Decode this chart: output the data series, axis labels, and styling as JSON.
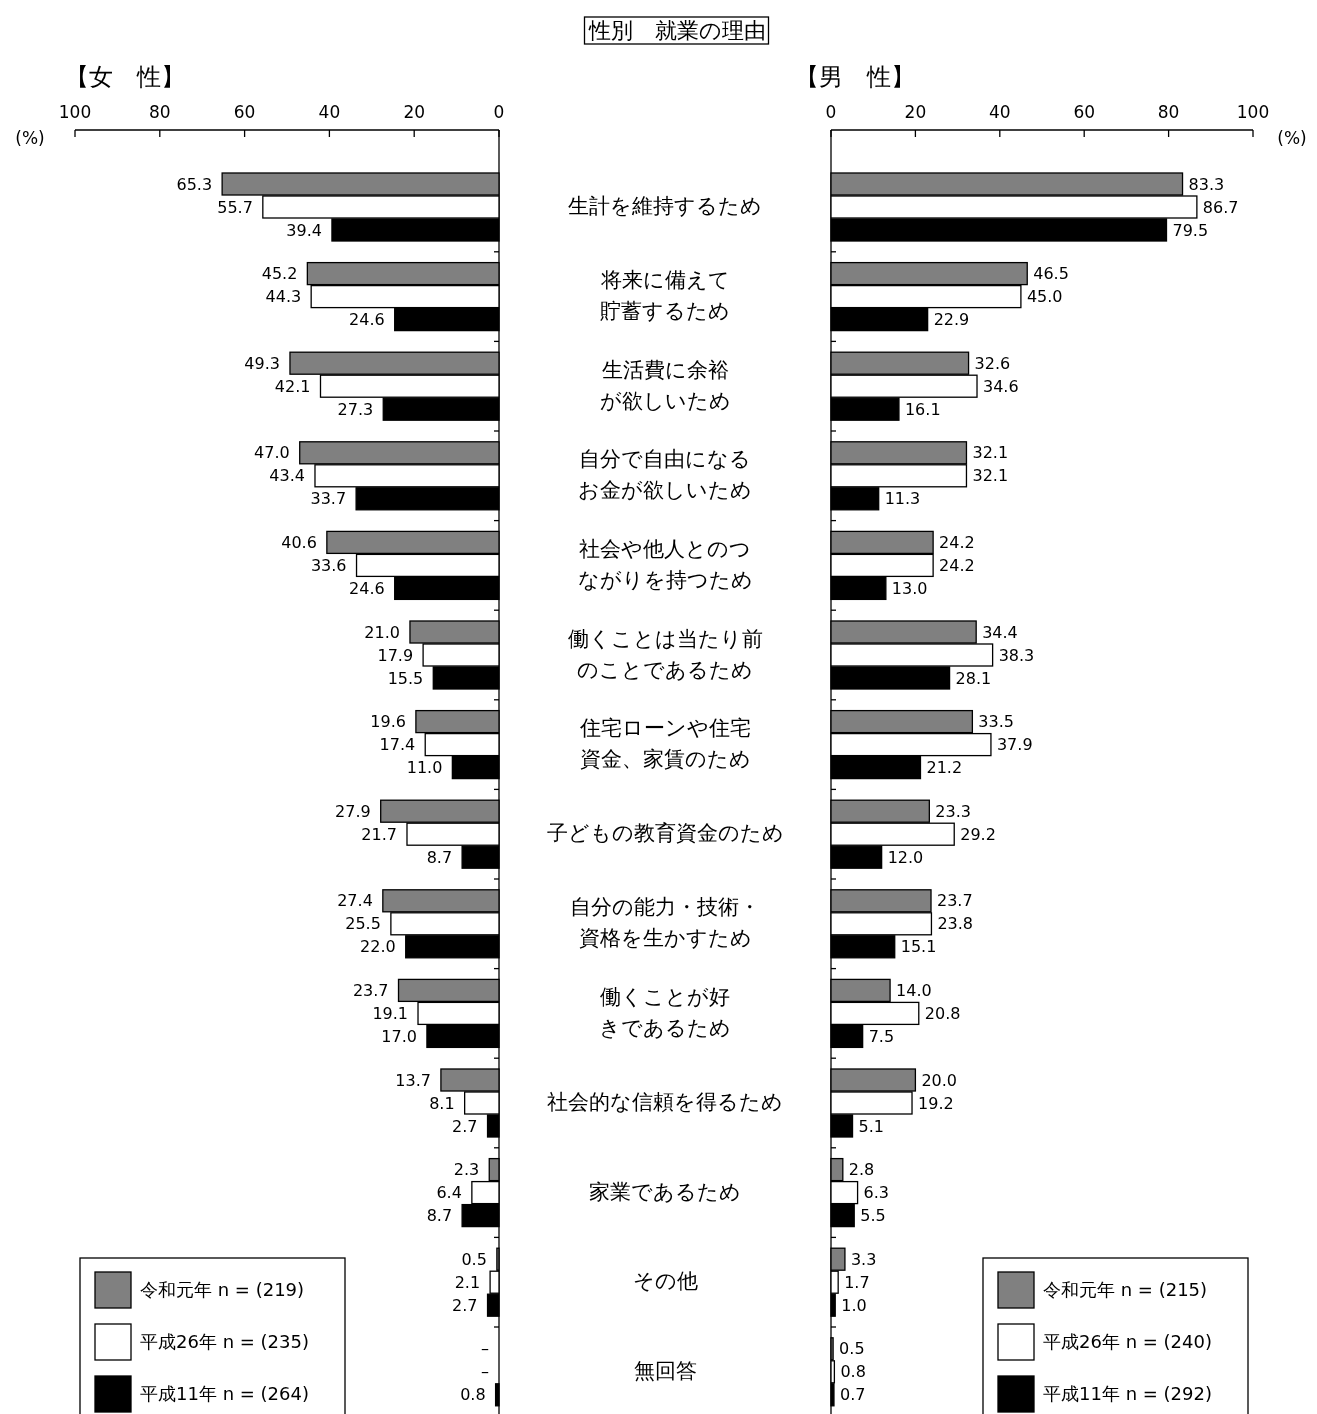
{
  "chart_data": [
    {
      "type": "bar",
      "orientation": "horizontal",
      "title": "性別　就業の理由",
      "subtitle": "【女　性】",
      "xlabel": "(%)",
      "xlim": [
        100,
        0
      ],
      "xticks": [
        0,
        20,
        40,
        60,
        80,
        100
      ],
      "legend": "bottom left",
      "categories": [
        "生計を維持するため",
        "将来に備えて貯蓄するため",
        "生活費に余裕が欲しいため",
        "自分で自由になるお金が欲しいため",
        "社会や他人とのつながりを持つため",
        "働くことは当たり前のことであるため",
        "住宅ローンや住宅資金、家賃のため",
        "子どもの教育資金のため",
        "自分の能力・技術・資格を生かすため",
        "働くことが好きであるため",
        "社会的な信頼を得るため",
        "家業であるため",
        "その他",
        "無回答"
      ],
      "series": [
        {
          "name": "令和元年 n = (219)",
          "color": "#808080",
          "values": [
            65.3,
            45.2,
            49.3,
            47.0,
            40.6,
            21.0,
            19.6,
            27.9,
            27.4,
            23.7,
            13.7,
            2.3,
            0.5,
            null
          ],
          "value_labels": [
            "65.3",
            "45.2",
            "49.3",
            "47.0",
            "40.6",
            "21.0",
            "19.6",
            "27.9",
            "27.4",
            "23.7",
            "13.7",
            "2.3",
            "0.5",
            "–"
          ]
        },
        {
          "name": "平成26年 n = (235)",
          "color": "#ffffff",
          "values": [
            55.7,
            44.3,
            42.1,
            43.4,
            33.6,
            17.9,
            17.4,
            21.7,
            25.5,
            19.1,
            8.1,
            6.4,
            2.1,
            null
          ],
          "value_labels": [
            "55.7",
            "44.3",
            "42.1",
            "43.4",
            "33.6",
            "17.9",
            "17.4",
            "21.7",
            "25.5",
            "19.1",
            "8.1",
            "6.4",
            "2.1",
            "–"
          ]
        },
        {
          "name": "平成11年 n = (264)",
          "color": "#000000",
          "values": [
            39.4,
            24.6,
            27.3,
            33.7,
            24.6,
            15.5,
            11.0,
            8.7,
            22.0,
            17.0,
            2.7,
            8.7,
            2.7,
            0.8
          ],
          "value_labels": [
            "39.4",
            "24.6",
            "27.3",
            "33.7",
            "24.6",
            "15.5",
            "11.0",
            "8.7",
            "22.0",
            "17.0",
            "2.7",
            "8.7",
            "2.7",
            "0.8"
          ]
        }
      ]
    },
    {
      "type": "bar",
      "orientation": "horizontal",
      "subtitle": "【男　性】",
      "xlabel": "(%)",
      "xlim": [
        0,
        100
      ],
      "xticks": [
        0,
        20,
        40,
        60,
        80,
        100
      ],
      "legend": "bottom right",
      "tick_labels": "x",
      "categories": [
        "生計を維持するため",
        "将来に備えて貯蓄するため",
        "生活費に余裕が欲しいため",
        "自分で自由になるお金が欲しいため",
        "社会や他人とのつながりを持つため",
        "働くことは当たり前のことであるため",
        "住宅ローンや住宅資金、家賃のため",
        "子どもの教育資金のため",
        "自分の能力・技術・資格を生かすため",
        "働くことが好きであるため",
        "社会的な信頼を得るため",
        "家業であるため",
        "その他",
        "無回答"
      ],
      "series": [
        {
          "name": "令和元年 n = (215)",
          "color": "#808080",
          "values": [
            83.3,
            46.5,
            32.6,
            32.1,
            24.2,
            34.4,
            33.5,
            23.3,
            23.7,
            14.0,
            20.0,
            2.8,
            3.3,
            0.5
          ],
          "value_labels": [
            "83.3",
            "46.5",
            "32.6",
            "32.1",
            "24.2",
            "34.4",
            "33.5",
            "23.3",
            "23.7",
            "14.0",
            "20.0",
            "2.8",
            "3.3",
            "0.5"
          ]
        },
        {
          "name": "平成26年 n = (240)",
          "color": "#ffffff",
          "values": [
            86.7,
            45.0,
            34.6,
            32.1,
            24.2,
            38.3,
            37.9,
            29.2,
            23.8,
            20.8,
            19.2,
            6.3,
            1.7,
            0.8
          ],
          "value_labels": [
            "86.7",
            "45.0",
            "34.6",
            "32.1",
            "24.2",
            "38.3",
            "37.9",
            "29.2",
            "23.8",
            "20.8",
            "19.2",
            "6.3",
            "1.7",
            "0.8"
          ]
        },
        {
          "name": "平成11年 n = (292)",
          "color": "#000000",
          "values": [
            79.5,
            22.9,
            16.1,
            11.3,
            13.0,
            28.1,
            21.2,
            12.0,
            15.1,
            7.5,
            5.1,
            5.5,
            1.0,
            0.7
          ],
          "value_labels": [
            "79.5",
            "22.9",
            "16.1",
            "11.3",
            "13.0",
            "28.1",
            "21.2",
            "12.0",
            "15.1",
            "7.5",
            "5.1",
            "5.5",
            "1.0",
            "0.7"
          ]
        }
      ]
    }
  ]
}
